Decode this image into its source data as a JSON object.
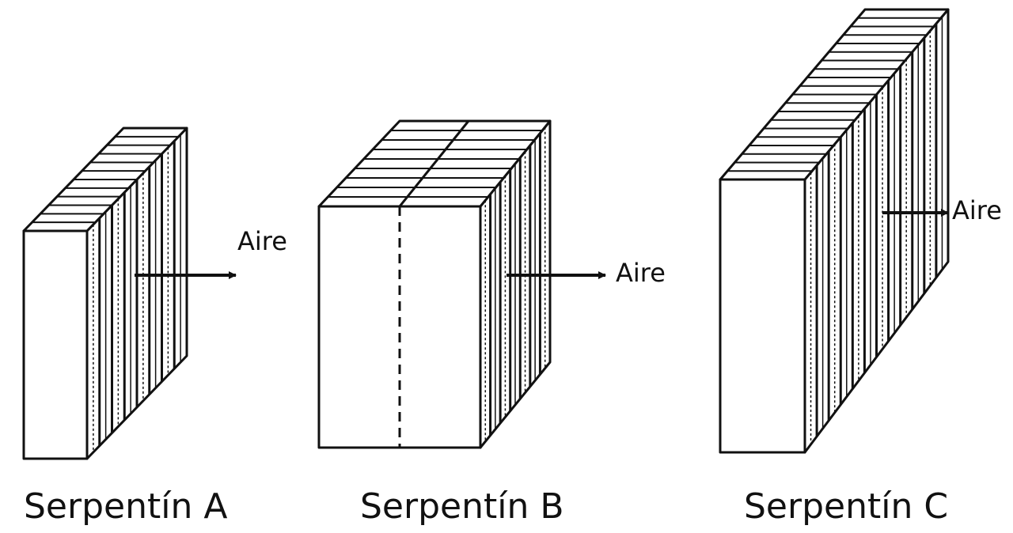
{
  "diagram": {
    "coils": [
      {
        "id": "A",
        "caption": "Serpentín A",
        "air_label": "Aire"
      },
      {
        "id": "B",
        "caption": "Serpentín B",
        "air_label": "Aire"
      },
      {
        "id": "C",
        "caption": "Serpentín C",
        "air_label": "Aire"
      }
    ]
  }
}
